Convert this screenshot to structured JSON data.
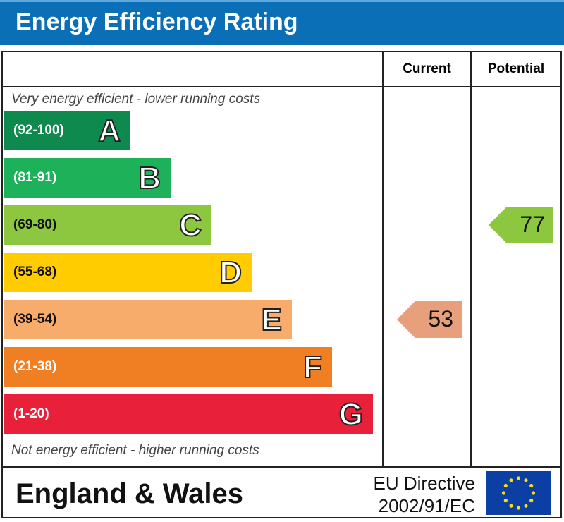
{
  "title": "Energy Efficiency Rating",
  "columns": {
    "current": "Current",
    "potential": "Potential"
  },
  "top_note": "Very energy efficient - lower running costs",
  "bottom_note": "Not energy efficient - higher running costs",
  "footer": {
    "region": "England & Wales",
    "directive_line1": "EU Directive",
    "directive_line2": "2002/91/EC",
    "flag_icon": "eu-flag-icon"
  },
  "chart_data": {
    "type": "bar",
    "bands": [
      {
        "letter": "A",
        "range": "(92-100)",
        "color": "#0f8a4f"
      },
      {
        "letter": "B",
        "range": "(81-91)",
        "color": "#1db25a"
      },
      {
        "letter": "C",
        "range": "(69-80)",
        "color": "#8dc63f"
      },
      {
        "letter": "D",
        "range": "(55-68)",
        "color": "#ffcc00"
      },
      {
        "letter": "E",
        "range": "(39-54)",
        "color": "#f7ac6b"
      },
      {
        "letter": "F",
        "range": "(21-38)",
        "color": "#f07f24"
      },
      {
        "letter": "G",
        "range": "(1-20)",
        "color": "#e8203a"
      }
    ],
    "current": {
      "value": 53,
      "band": "E",
      "color": "#e8a07c"
    },
    "potential": {
      "value": 77,
      "band": "C",
      "color": "#8dc63f"
    }
  }
}
